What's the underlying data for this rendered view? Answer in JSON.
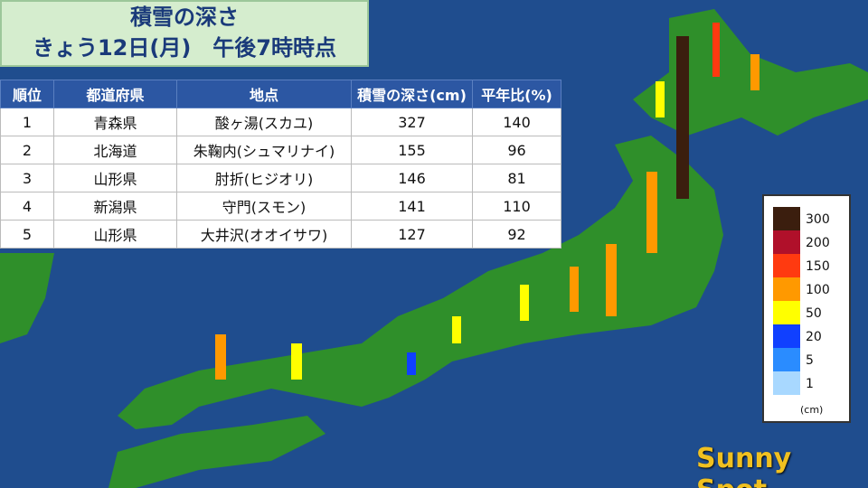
{
  "header": {
    "title": "積雪の深さ",
    "subtitle": "きょう12日(月)　午後7時時点"
  },
  "table": {
    "columns": [
      "順位",
      "都道府県",
      "地点",
      "積雪の深さ(cm)",
      "平年比(%)"
    ],
    "rows": [
      [
        1,
        "青森県",
        "酸ヶ湯(スカユ)",
        327,
        140
      ],
      [
        2,
        "北海道",
        "朱鞠内(シュマリナイ)",
        155,
        96
      ],
      [
        3,
        "山形県",
        "肘折(ヒジオリ)",
        146,
        81
      ],
      [
        4,
        "新潟県",
        "守門(スモン)",
        141,
        110
      ],
      [
        5,
        "山形県",
        "大井沢(オオイサワ)",
        127,
        92
      ]
    ]
  },
  "legend": {
    "items": [
      {
        "label": "300",
        "color": "#3b1e0e"
      },
      {
        "label": "200",
        "color": "#b0102a"
      },
      {
        "label": "150",
        "color": "#ff3a10"
      },
      {
        "label": "100",
        "color": "#ff9900"
      },
      {
        "label": "50",
        "color": "#ffff00"
      },
      {
        "label": "20",
        "color": "#1040ff"
      },
      {
        "label": "5",
        "color": "#2a8cff"
      },
      {
        "label": "1",
        "color": "#a8d8ff"
      }
    ],
    "unit": "(cm)"
  },
  "logo": {
    "text": "Sunny Spot"
  }
}
